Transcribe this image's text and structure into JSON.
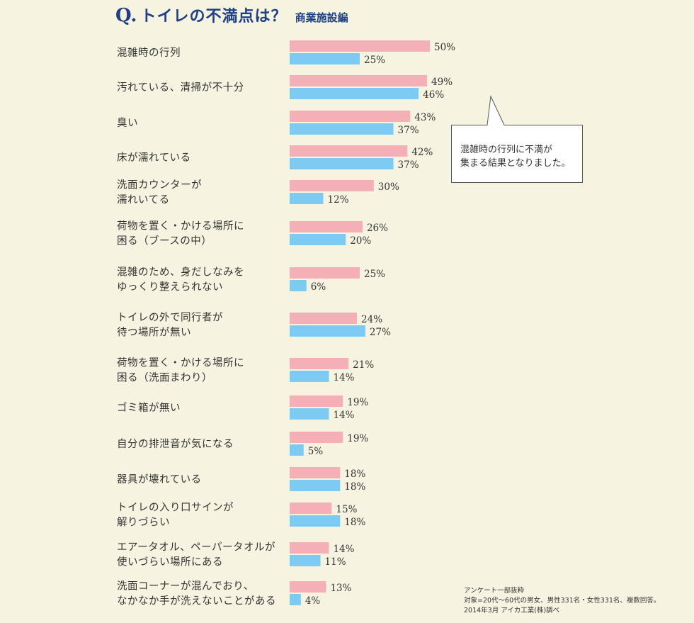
{
  "title": {
    "prefix": "Q.",
    "main": "トイレの不満点は？",
    "sub": "商業施設編"
  },
  "colors": {
    "series1": "#f4b0b6",
    "series2": "#7dcbf2",
    "background": "#f6f4e1"
  },
  "callout": {
    "line1": "混雑時の行列に不満が",
    "line2": "集まる結果となりました。"
  },
  "note": {
    "line1": "アンケート一部抜粋",
    "line2": "対象=20代〜60代の男女、男性331名・女性331名、複数回答。",
    "line3": "2014年3月 アイカ工業(株)調べ"
  },
  "chart_data": {
    "type": "bar",
    "orientation": "horizontal",
    "categories": [
      [
        "混雑時の行列"
      ],
      [
        "汚れている、清掃が不十分"
      ],
      [
        "臭い"
      ],
      [
        "床が濡れている"
      ],
      [
        "洗面カウンターが",
        "濡れいてる"
      ],
      [
        "荷物を置く・かける場所に",
        "困る（ブースの中）"
      ],
      [
        "混雑のため、身だしなみを",
        "ゆっくり整えられない"
      ],
      [
        "トイレの外で同行者が",
        "待つ場所が無い"
      ],
      [
        "荷物を置く・かける場所に",
        "困る（洗面まわり）"
      ],
      [
        "ゴミ箱が無い"
      ],
      [
        "自分の排泄音が気になる"
      ],
      [
        "器具が壊れている"
      ],
      [
        "トイレの入り口サインが",
        "解りづらい"
      ],
      [
        "エアータオル、ペーパータオルが",
        "使いづらい場所にある"
      ],
      [
        "洗面コーナーが混んでおり、",
        "なかなか手が洗えないことがある"
      ]
    ],
    "series": [
      {
        "values": [
          50,
          49,
          43,
          42,
          30,
          26,
          25,
          24,
          21,
          19,
          19,
          18,
          15,
          14,
          13
        ]
      },
      {
        "values": [
          25,
          46,
          37,
          37,
          12,
          20,
          6,
          27,
          14,
          14,
          5,
          18,
          18,
          11,
          4
        ]
      }
    ],
    "unit": "%",
    "xlim": [
      0,
      100
    ],
    "grid": false,
    "title": "",
    "xlabel": "",
    "ylabel": ""
  }
}
